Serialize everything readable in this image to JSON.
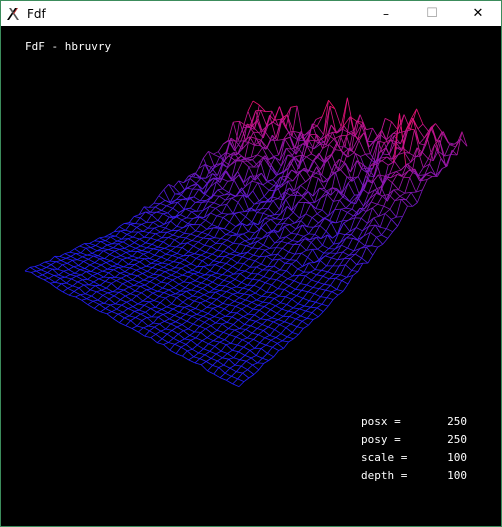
{
  "window": {
    "title": "Fdf",
    "app_icon": "x-logo-icon",
    "controls": {
      "minimize": "–",
      "maximize": "☐",
      "close": "✕"
    }
  },
  "canvas": {
    "background": "#000000",
    "overlay_title": "FdF - hbruvry",
    "colors": {
      "low": "#2020ff",
      "high": "#ff1060"
    },
    "hud": [
      {
        "label": "posx =",
        "value": "250"
      },
      {
        "label": "posy =",
        "value": "250"
      },
      {
        "label": "scale =",
        "value": "100"
      },
      {
        "label": "depth =",
        "value": "100"
      }
    ]
  }
}
